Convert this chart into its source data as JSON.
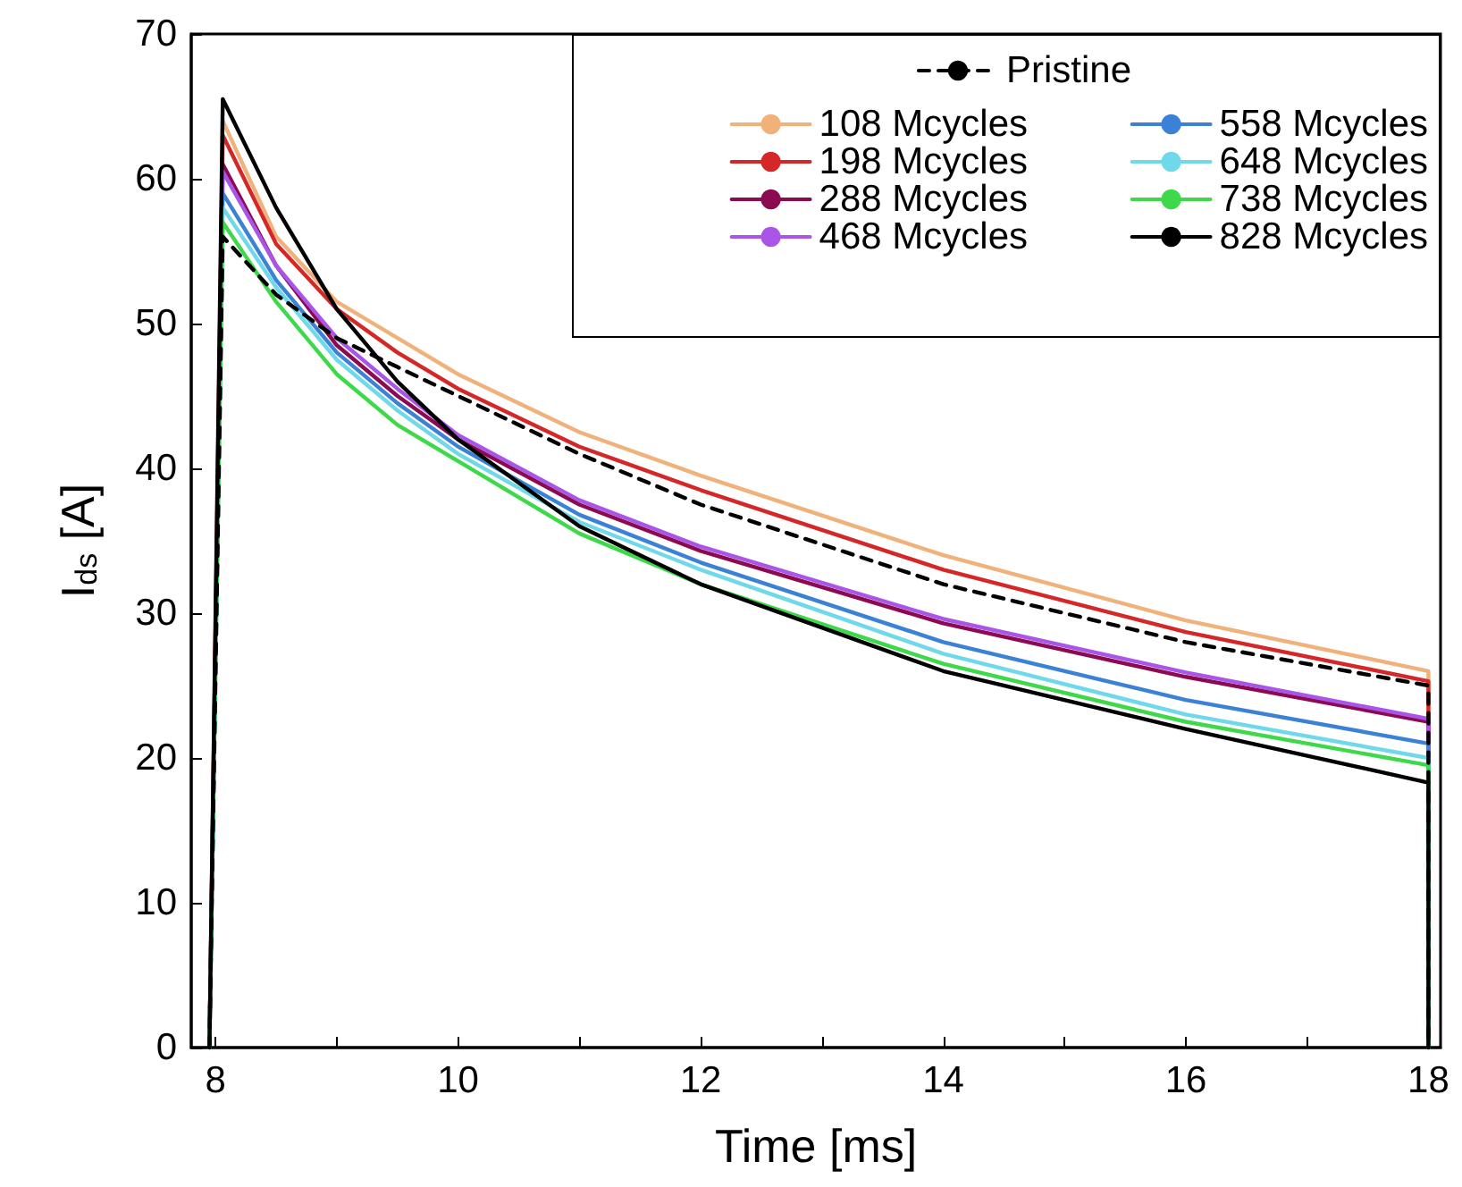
{
  "chart_data": {
    "type": "line",
    "xlabel": "Time [ms]",
    "ylabel": "I$_{ds}$ [A]",
    "x": [
      7.95,
      8.06,
      8.5,
      9,
      9.5,
      10,
      11,
      12,
      14,
      16,
      18,
      18
    ],
    "xlim": [
      7.8,
      18.1
    ],
    "ylim": [
      0,
      70
    ],
    "xticks": [
      8,
      {
        "value": 9,
        "label": null
      },
      10,
      {
        "value": 11,
        "label": null
      },
      12,
      {
        "value": 13,
        "label": null
      },
      14,
      {
        "value": 15,
        "label": null
      },
      16,
      {
        "value": 17,
        "label": null
      },
      18
    ],
    "yticks": [
      0,
      10,
      20,
      30,
      40,
      50,
      60,
      70
    ],
    "grid": false,
    "legend": "top right",
    "marker": "none",
    "series": [
      {
        "name": "Pristine",
        "color": "#000000",
        "line_style": "dashed",
        "values": [
          0,
          56,
          52,
          49,
          47,
          45,
          41,
          37.5,
          32,
          28,
          25,
          0
        ]
      },
      {
        "name": "108 Mcycles",
        "color": "#f0b27a",
        "line_style": "solid",
        "values": [
          0,
          64,
          56,
          51.5,
          49,
          46.5,
          42.5,
          39.5,
          34,
          29.5,
          26,
          0
        ]
      },
      {
        "name": "198 Mcycles",
        "color": "#d62728",
        "line_style": "solid",
        "values": [
          0,
          63,
          55.5,
          51,
          48,
          45.5,
          41.5,
          38.5,
          33,
          28.7,
          25.3,
          0
        ]
      },
      {
        "name": "288 Mcycles",
        "color": "#8b0a50",
        "line_style": "solid",
        "values": [
          0,
          61,
          54,
          48.5,
          45,
          42,
          37.5,
          34.3,
          29.3,
          25.6,
          22.5,
          0
        ]
      },
      {
        "name": "468 Mcycles",
        "color": "#a855e8",
        "line_style": "solid",
        "values": [
          0,
          60.5,
          54,
          49,
          45.5,
          42.3,
          37.8,
          34.6,
          29.6,
          25.9,
          22.7,
          0
        ]
      },
      {
        "name": "558 Mcycles",
        "color": "#3b82d6",
        "line_style": "solid",
        "values": [
          0,
          59,
          53,
          48,
          44.5,
          41.5,
          36.8,
          33.5,
          28,
          24,
          21,
          0
        ]
      },
      {
        "name": "648 Mcycles",
        "color": "#6fd9ea",
        "line_style": "solid",
        "values": [
          0,
          58,
          52.5,
          47.5,
          44,
          41,
          36.3,
          33,
          27.2,
          23,
          20,
          0
        ]
      },
      {
        "name": "738 Mcycles",
        "color": "#3dd94a",
        "line_style": "solid",
        "values": [
          0,
          57,
          51.5,
          46.5,
          43,
          40.5,
          35.5,
          32,
          26.5,
          22.5,
          19.5,
          0
        ]
      },
      {
        "name": "828 Mcycles",
        "color": "#000000",
        "line_style": "solid",
        "values": [
          0,
          65.5,
          58,
          51,
          46,
          42,
          36,
          32,
          26,
          22,
          18.3,
          0
        ]
      }
    ]
  }
}
